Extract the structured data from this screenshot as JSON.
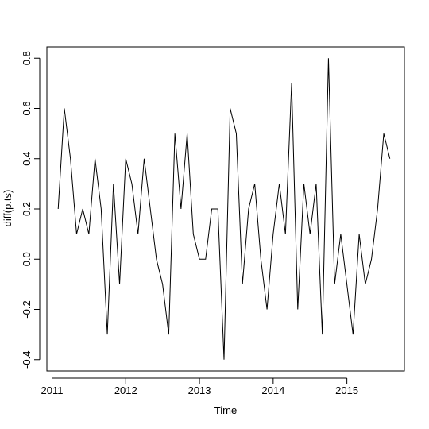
{
  "chart_data": {
    "type": "line",
    "title": "",
    "xlabel": "Time",
    "ylabel": "diff(p.ts)",
    "xlim": [
      2010.93,
      2015.78
    ],
    "ylim": [
      -0.445,
      0.845
    ],
    "x_ticks": [
      2011,
      2012,
      2013,
      2014,
      2015
    ],
    "x_tick_labels": [
      "2011",
      "2012",
      "2013",
      "2014",
      "2015"
    ],
    "y_ticks": [
      -0.4,
      -0.2,
      0.0,
      0.2,
      0.4,
      0.6,
      0.8
    ],
    "y_tick_labels": [
      "-0.4",
      "-0.2",
      "0.0",
      "0.2",
      "0.4",
      "0.6",
      "0.8"
    ],
    "grid": false,
    "series": [
      {
        "x_start": 2011.0833,
        "x_step": 0.083333,
        "values": [
          0.2,
          0.6,
          0.4,
          0.1,
          0.2,
          0.1,
          0.4,
          0.2,
          -0.3,
          0.3,
          -0.1,
          0.4,
          0.3,
          0.1,
          0.4,
          0.2,
          0.0,
          -0.1,
          -0.3,
          0.5,
          0.2,
          0.5,
          0.1,
          0.0,
          0.0,
          0.2,
          0.2,
          -0.4,
          0.6,
          0.5,
          -0.1,
          0.2,
          0.3,
          0.0,
          -0.2,
          0.1,
          0.3,
          0.1,
          0.7,
          -0.2,
          0.3,
          0.1,
          0.3,
          -0.3,
          0.8,
          -0.1,
          0.1,
          -0.1,
          -0.3,
          0.1,
          -0.1,
          0.0,
          0.2,
          0.5,
          0.4
        ]
      }
    ]
  }
}
